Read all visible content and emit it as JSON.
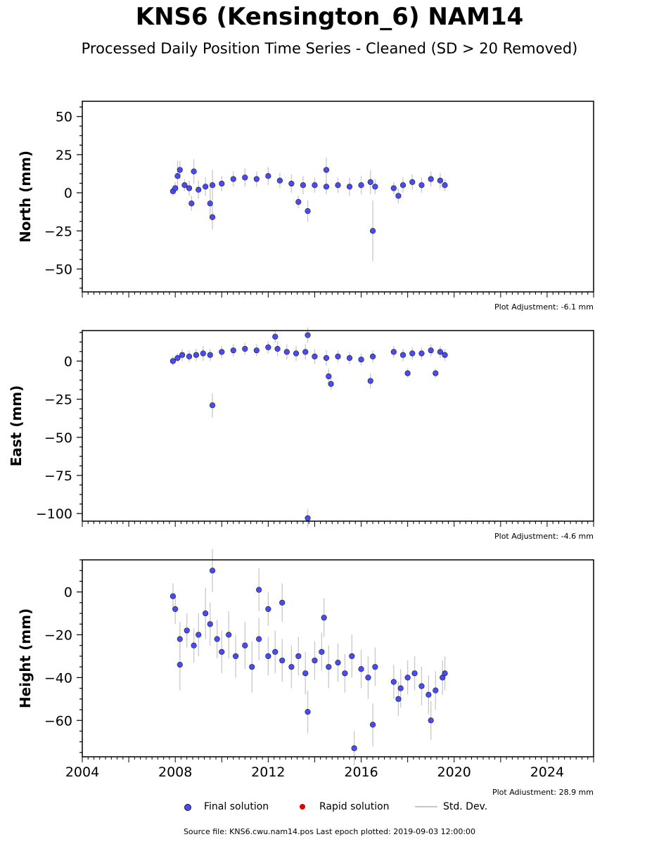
{
  "header": {
    "title": "KNS6 (Kensington_6) NAM14",
    "subtitle": "Processed Daily Position Time Series - Cleaned (SD > 20 Removed)"
  },
  "legend": {
    "final_label": "Final solution",
    "rapid_label": "Rapid solution",
    "stddev_label": "Std. Dev."
  },
  "footer": {
    "source_note": "Source file: KNS6.cwu.nam14.pos  Last epoch plotted: 2019-09-03 12:00:00"
  },
  "colors": {
    "final": "#4b4bf5",
    "rapid": "#e00000",
    "stddev": "#c8c8c8",
    "edge": "#1a1a1a"
  },
  "chart_data": [
    {
      "type": "scatter",
      "ylabel": "North (mm)",
      "ylim": [
        -65,
        60
      ],
      "yticks": [
        -50,
        -25,
        0,
        25,
        50
      ],
      "ytick_labels": [
        "−50",
        "−25",
        "0",
        "25",
        "50"
      ],
      "xlim": [
        2004,
        2026
      ],
      "adjustment_note": "Plot Adjustment: -6.1 mm",
      "series": [
        {
          "name": "Final solution",
          "x": [
            2007.9,
            2008.0,
            2008.2,
            2008.4,
            2008.6,
            2008.8,
            2009.0,
            2009.3,
            2009.6,
            2010.0,
            2010.5,
            2011.0,
            2011.5,
            2012.0,
            2012.5,
            2013.0,
            2013.5,
            2014.0,
            2014.5,
            2015.0,
            2015.5,
            2016.0,
            2016.4,
            2016.6,
            2017.4,
            2017.8,
            2018.2,
            2018.6,
            2019.0,
            2019.4,
            2019.6,
            2009.5,
            2009.6,
            2013.3,
            2013.7,
            2014.5,
            2016.5,
            2017.6,
            2008.7,
            2008.1
          ],
          "y": [
            1,
            3,
            15,
            5,
            3,
            14,
            2,
            4,
            5,
            6,
            9,
            10,
            9,
            11,
            8,
            6,
            5,
            5,
            4,
            5,
            4,
            5,
            7,
            4,
            3,
            5,
            7,
            5,
            9,
            8,
            5,
            -7,
            -16,
            -6,
            -12,
            15,
            -25,
            -2,
            -7,
            11
          ],
          "err": [
            3,
            4,
            6,
            4,
            5,
            8,
            6,
            6,
            10,
            5,
            5,
            6,
            5,
            6,
            5,
            6,
            6,
            5,
            5,
            5,
            6,
            6,
            8,
            5,
            4,
            5,
            5,
            5,
            5,
            5,
            4,
            10,
            8,
            4,
            7,
            8,
            20,
            5,
            5,
            10
          ]
        }
      ]
    },
    {
      "type": "scatter",
      "ylabel": "East (mm)",
      "ylim": [
        -105,
        20
      ],
      "yticks": [
        -100,
        -75,
        -50,
        -25,
        0
      ],
      "ytick_labels": [
        "−100",
        "−75",
        "−50",
        "−25",
        "0"
      ],
      "xlim": [
        2004,
        2026
      ],
      "adjustment_note": "Plot Adjustment: -4.6 mm",
      "series": [
        {
          "name": "Final solution",
          "x": [
            2007.9,
            2008.1,
            2008.3,
            2008.6,
            2008.9,
            2009.2,
            2009.5,
            2010.0,
            2010.5,
            2011.0,
            2011.5,
            2012.0,
            2012.4,
            2012.8,
            2013.2,
            2013.6,
            2014.0,
            2014.5,
            2015.0,
            2015.5,
            2016.0,
            2016.5,
            2017.4,
            2017.8,
            2018.2,
            2018.6,
            2019.0,
            2019.4,
            2019.6,
            2009.6,
            2013.7,
            2012.3,
            2013.7,
            2014.7,
            2016.4,
            2018.0,
            2019.2,
            2014.6
          ],
          "y": [
            0,
            2,
            4,
            3,
            4,
            5,
            4,
            6,
            7,
            8,
            7,
            9,
            8,
            6,
            5,
            6,
            3,
            2,
            3,
            2,
            1,
            3,
            6,
            4,
            5,
            5,
            7,
            6,
            4,
            -29,
            -103,
            16,
            17,
            -15,
            -13,
            -8,
            -8,
            -10
          ],
          "err": [
            3,
            3,
            4,
            4,
            4,
            5,
            4,
            4,
            4,
            4,
            4,
            4,
            5,
            5,
            5,
            5,
            5,
            5,
            4,
            4,
            4,
            4,
            4,
            4,
            4,
            4,
            4,
            4,
            4,
            8,
            6,
            4,
            5,
            4,
            5,
            3,
            3,
            5
          ]
        }
      ]
    },
    {
      "type": "scatter",
      "ylabel": "Height (mm)",
      "ylim": [
        -77,
        15
      ],
      "yticks": [
        -60,
        -40,
        -20,
        0
      ],
      "ytick_labels": [
        "−60",
        "−40",
        "−20",
        "0"
      ],
      "xlim": [
        2004,
        2026
      ],
      "xticks": [
        2004,
        2008,
        2012,
        2016,
        2020,
        2024
      ],
      "xtick_labels": [
        "2004",
        "2008",
        "2012",
        "2016",
        "2020",
        "2024"
      ],
      "adjustment_note": "Plot Adjustment: 28.9 mm",
      "series": [
        {
          "name": "Final solution",
          "x": [
            2007.9,
            2008.0,
            2008.2,
            2008.5,
            2008.8,
            2009.0,
            2009.3,
            2009.5,
            2009.8,
            2010.0,
            2010.3,
            2010.6,
            2011.0,
            2011.3,
            2011.6,
            2012.0,
            2012.3,
            2012.6,
            2013.0,
            2013.3,
            2013.6,
            2014.0,
            2014.3,
            2014.6,
            2015.0,
            2015.3,
            2015.6,
            2016.0,
            2016.3,
            2016.6,
            2017.4,
            2017.7,
            2018.0,
            2018.3,
            2018.6,
            2018.9,
            2019.2,
            2019.5,
            2019.6,
            2009.6,
            2011.6,
            2012.6,
            2013.7,
            2015.7,
            2016.5,
            2008.2,
            2012.0,
            2014.4,
            2017.6,
            2019.0
          ],
          "y": [
            -2,
            -8,
            -22,
            -18,
            -25,
            -20,
            -10,
            -15,
            -22,
            -28,
            -20,
            -30,
            -25,
            -35,
            -22,
            -30,
            -28,
            -32,
            -35,
            -30,
            -38,
            -32,
            -28,
            -35,
            -33,
            -38,
            -30,
            -36,
            -40,
            -35,
            -42,
            -45,
            -40,
            -38,
            -44,
            -48,
            -46,
            -40,
            -38,
            10,
            1,
            -5,
            -56,
            -73,
            -62,
            -34,
            -8,
            -12,
            -50,
            -60
          ],
          "err": [
            6,
            7,
            8,
            8,
            8,
            10,
            12,
            10,
            9,
            10,
            11,
            10,
            11,
            12,
            10,
            9,
            10,
            10,
            10,
            9,
            10,
            9,
            9,
            10,
            9,
            9,
            10,
            9,
            10,
            9,
            8,
            9,
            8,
            8,
            9,
            9,
            9,
            8,
            8,
            10,
            10,
            9,
            10,
            8,
            10,
            12,
            8,
            9,
            8,
            9
          ]
        }
      ]
    }
  ]
}
